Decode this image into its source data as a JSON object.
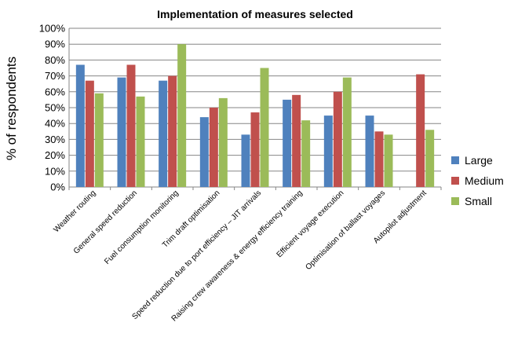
{
  "chart_data": {
    "type": "bar",
    "title": "Implementation of measures selected",
    "xlabel": "",
    "ylabel": "% of respondents",
    "ylim": [
      0,
      100
    ],
    "yticks": [
      "0%",
      "10%",
      "20%",
      "30%",
      "40%",
      "50%",
      "60%",
      "70%",
      "80%",
      "90%",
      "100%"
    ],
    "grid": true,
    "legend_position": "right",
    "categories": [
      "Weather routing",
      "General speed reduction",
      "Fuel consumption monitoring",
      "Trim draft optimisation",
      "Speed reduction due to port efficiency – JIT arrivals",
      "Raising crew awareness & energy efficiency training",
      "Efficient voyage execution",
      "Optimisation of ballast voyages",
      "Autopilot adjustment"
    ],
    "series": [
      {
        "name": "Large",
        "color": "#4f81bd",
        "values": [
          77,
          69,
          67,
          44,
          33,
          55,
          45,
          45,
          0
        ]
      },
      {
        "name": "Medium",
        "color": "#c0504d",
        "values": [
          67,
          77,
          70,
          50,
          47,
          58,
          60,
          35,
          71
        ]
      },
      {
        "name": "Small",
        "color": "#9bbb59",
        "values": [
          59,
          57,
          90,
          56,
          75,
          42,
          69,
          33,
          36
        ]
      }
    ]
  }
}
